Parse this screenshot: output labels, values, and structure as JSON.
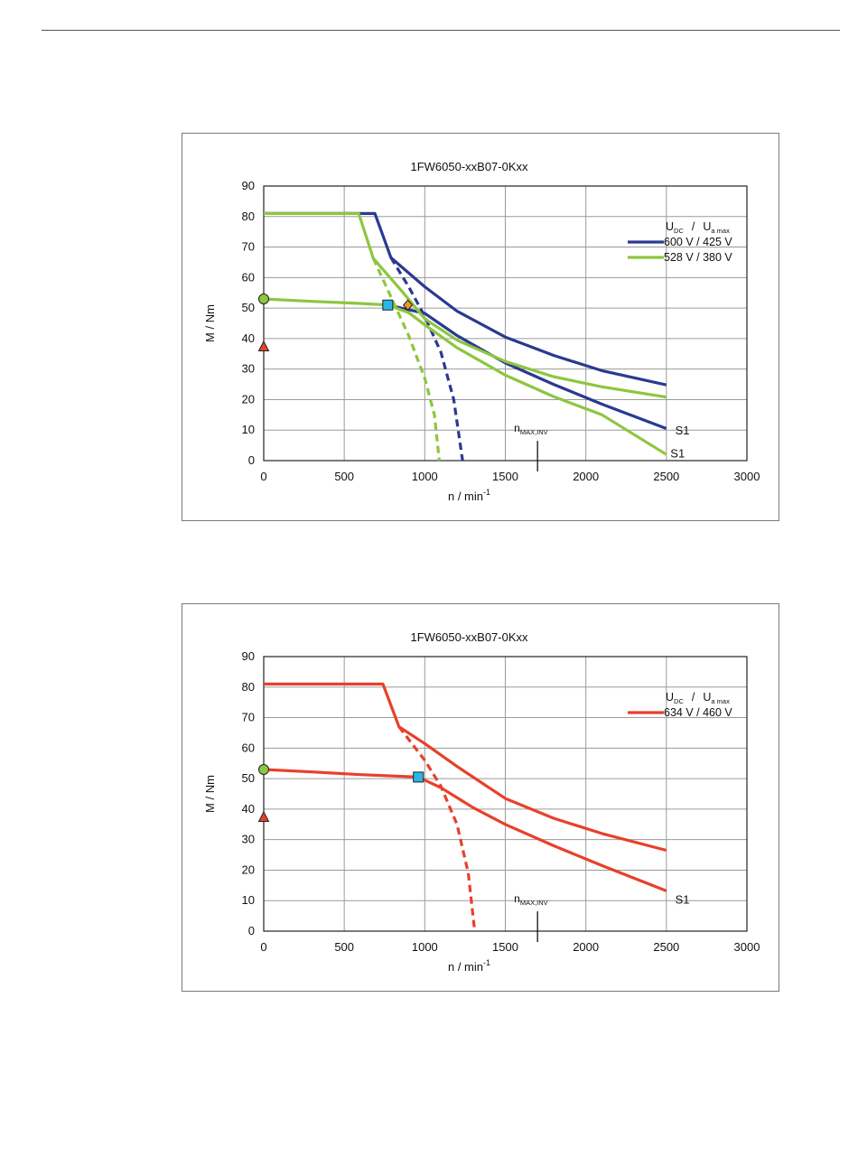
{
  "chart_data": [
    {
      "type": "line",
      "title": "1FW6050-xxB07-0Kxx",
      "xlabel": {
        "main": "n / min",
        "sup": "-1"
      },
      "ylabel": "M / Nm",
      "xlim": [
        0,
        3000
      ],
      "ylim": [
        0,
        90
      ],
      "xticks": [
        0,
        500,
        1000,
        1500,
        2000,
        2500,
        3000
      ],
      "yticks": [
        0,
        10,
        20,
        30,
        40,
        50,
        60,
        70,
        80,
        90
      ],
      "grid": true,
      "legend": {
        "placement": "right",
        "header": {
          "u": "U",
          "dc": "DC",
          "sep": "/",
          "u2": "U",
          "amax": "a max"
        },
        "entries": [
          {
            "label": "600 V / 425 V",
            "color": "#2b3990"
          },
          {
            "label": "528 V / 380 V",
            "color": "#8dc63f"
          }
        ]
      },
      "series": [
        {
          "color": "#2b3990",
          "style": "solid",
          "points": [
            [
              0,
              81
            ],
            [
              690,
              81
            ],
            [
              790,
              66.5
            ],
            [
              1000,
              57
            ],
            [
              1200,
              49
            ],
            [
              1500,
              40.5
            ],
            [
              1800,
              34.5
            ],
            [
              2100,
              29.5
            ],
            [
              2500,
              24.8
            ]
          ]
        },
        {
          "color": "#2b3990",
          "style": "solid",
          "points": [
            [
              770,
              51
            ],
            [
              1000,
              48.3
            ],
            [
              1200,
              41
            ],
            [
              1500,
              32
            ],
            [
              1800,
              25
            ],
            [
              2100,
              18.5
            ],
            [
              2500,
              10.5
            ]
          ]
        },
        {
          "color": "#2b3990",
          "style": "dashed",
          "points": [
            [
              790,
              66.5
            ],
            [
              900,
              57
            ],
            [
              1000,
              47.3
            ],
            [
              1100,
              35.5
            ],
            [
              1180,
              20
            ],
            [
              1235,
              0
            ]
          ]
        },
        {
          "color": "#8dc63f",
          "style": "solid",
          "points": [
            [
              0,
              81
            ],
            [
              590,
              81
            ],
            [
              680,
              66.3
            ],
            [
              850,
              56
            ],
            [
              1000,
              46.5
            ],
            [
              1200,
              39.5
            ],
            [
              1500,
              32.5
            ],
            [
              1800,
              27.5
            ],
            [
              2100,
              24.2
            ],
            [
              2500,
              20.8
            ]
          ]
        },
        {
          "color": "#8dc63f",
          "style": "solid",
          "points": [
            [
              0,
              53
            ],
            [
              300,
              52.2
            ],
            [
              600,
              51.5
            ],
            [
              770,
              51
            ],
            [
              900,
              48.5
            ],
            [
              1000,
              44.5
            ],
            [
              1200,
              37
            ],
            [
              1500,
              28
            ],
            [
              1800,
              21
            ],
            [
              2100,
              15
            ],
            [
              2500,
              2
            ]
          ]
        },
        {
          "color": "#8dc63f",
          "style": "dashed",
          "points": [
            [
              680,
              66.3
            ],
            [
              800,
              52.5
            ],
            [
              900,
              41
            ],
            [
              1000,
              27
            ],
            [
              1060,
              15
            ],
            [
              1090,
              0
            ]
          ]
        }
      ],
      "markers": [
        {
          "shape": "circle",
          "x": 0,
          "y": 53,
          "color": "#8dc63f"
        },
        {
          "shape": "triangle",
          "x": 0,
          "y": 37.3,
          "color": "#e8402a"
        },
        {
          "shape": "square",
          "x": 770,
          "y": 51,
          "color": "#29b6e8"
        },
        {
          "shape": "diamond",
          "x": 895,
          "y": 51,
          "color": "#f7941d"
        }
      ],
      "annotations": [
        {
          "text": "S1",
          "x": 2555,
          "y": 10
        },
        {
          "text": "S1",
          "x": 2525,
          "y": 2.5
        }
      ],
      "nmax": {
        "main": "n",
        "sub": "MAX,INV",
        "x": 1700,
        "y": 6.5
      }
    },
    {
      "type": "line",
      "title": "1FW6050-xxB07-0Kxx",
      "xlabel": {
        "main": "n / min",
        "sup": "-1"
      },
      "ylabel": "M / Nm",
      "xlim": [
        0,
        3000
      ],
      "ylim": [
        0,
        90
      ],
      "xticks": [
        0,
        500,
        1000,
        1500,
        2000,
        2500,
        3000
      ],
      "yticks": [
        0,
        10,
        20,
        30,
        40,
        50,
        60,
        70,
        80,
        90
      ],
      "grid": true,
      "legend": {
        "placement": "right",
        "header": {
          "u": "U",
          "dc": "DC",
          "sep": "/",
          "u2": "U",
          "amax": "a max"
        },
        "entries": [
          {
            "label": "634 V / 460 V",
            "color": "#e8402a"
          }
        ]
      },
      "series": [
        {
          "color": "#e8402a",
          "style": "solid",
          "points": [
            [
              0,
              81
            ],
            [
              740,
              81
            ],
            [
              840,
              67
            ],
            [
              1000,
              61.5
            ],
            [
              1200,
              54
            ],
            [
              1500,
              43.5
            ],
            [
              1800,
              37
            ],
            [
              2100,
              32
            ],
            [
              2500,
              26.5
            ]
          ]
        },
        {
          "color": "#e8402a",
          "style": "solid",
          "points": [
            [
              0,
              53
            ],
            [
              300,
              52.2
            ],
            [
              600,
              51.3
            ],
            [
              960,
              50.5
            ],
            [
              1100,
              47
            ],
            [
              1300,
              40.5
            ],
            [
              1500,
              35
            ],
            [
              1800,
              28
            ],
            [
              2100,
              21.5
            ],
            [
              2500,
              13.2
            ]
          ]
        },
        {
          "color": "#e8402a",
          "style": "dashed",
          "points": [
            [
              840,
              67
            ],
            [
              1000,
              56
            ],
            [
              1100,
              47.5
            ],
            [
              1200,
              35
            ],
            [
              1270,
              19
            ],
            [
              1310,
              0
            ]
          ]
        }
      ],
      "markers": [
        {
          "shape": "circle",
          "x": 0,
          "y": 53,
          "color": "#8dc63f"
        },
        {
          "shape": "triangle",
          "x": 0,
          "y": 37.3,
          "color": "#e8402a"
        },
        {
          "shape": "square",
          "x": 960,
          "y": 50.5,
          "color": "#29b6e8"
        }
      ],
      "annotations": [
        {
          "text": "S1",
          "x": 2555,
          "y": 10.5
        }
      ],
      "nmax": {
        "main": "n",
        "sub": "MAX,INV",
        "x": 1700,
        "y": 6.5
      }
    }
  ]
}
